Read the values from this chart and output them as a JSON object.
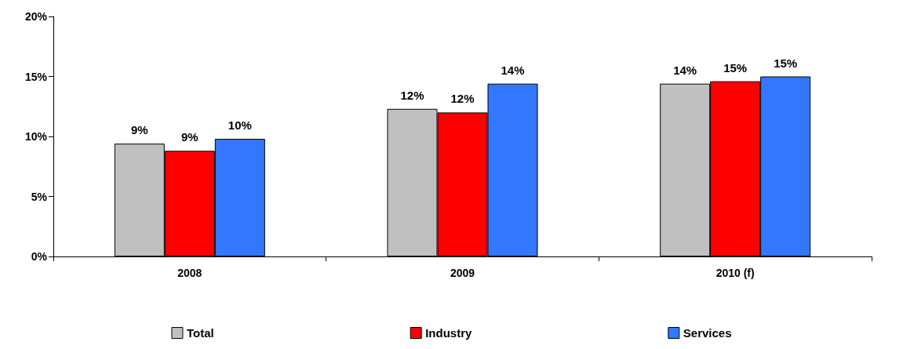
{
  "chart_data": {
    "type": "bar",
    "categories": [
      "2008",
      "2009",
      "2010 (f)"
    ],
    "series": [
      {
        "name": "Total",
        "color": "#c0c0c0",
        "values": [
          9.4,
          12.3,
          14.4
        ],
        "value_labels": [
          "9%",
          "12%",
          "14%"
        ]
      },
      {
        "name": "Industry",
        "color": "#ff0000",
        "values": [
          8.8,
          12.0,
          14.6
        ],
        "value_labels": [
          "9%",
          "12%",
          "15%"
        ]
      },
      {
        "name": "Services",
        "color": "#3377ff",
        "values": [
          9.8,
          14.4,
          15.0
        ],
        "value_labels": [
          "10%",
          "14%",
          "15%"
        ]
      }
    ],
    "ylim": [
      0,
      20
    ],
    "yticks": [
      {
        "value": 0,
        "label": "0%"
      },
      {
        "value": 5,
        "label": "5%"
      },
      {
        "value": 10,
        "label": "10%"
      },
      {
        "value": 15,
        "label": "15%"
      },
      {
        "value": 20,
        "label": "20%"
      }
    ],
    "grid": false,
    "legend": "bottom"
  }
}
